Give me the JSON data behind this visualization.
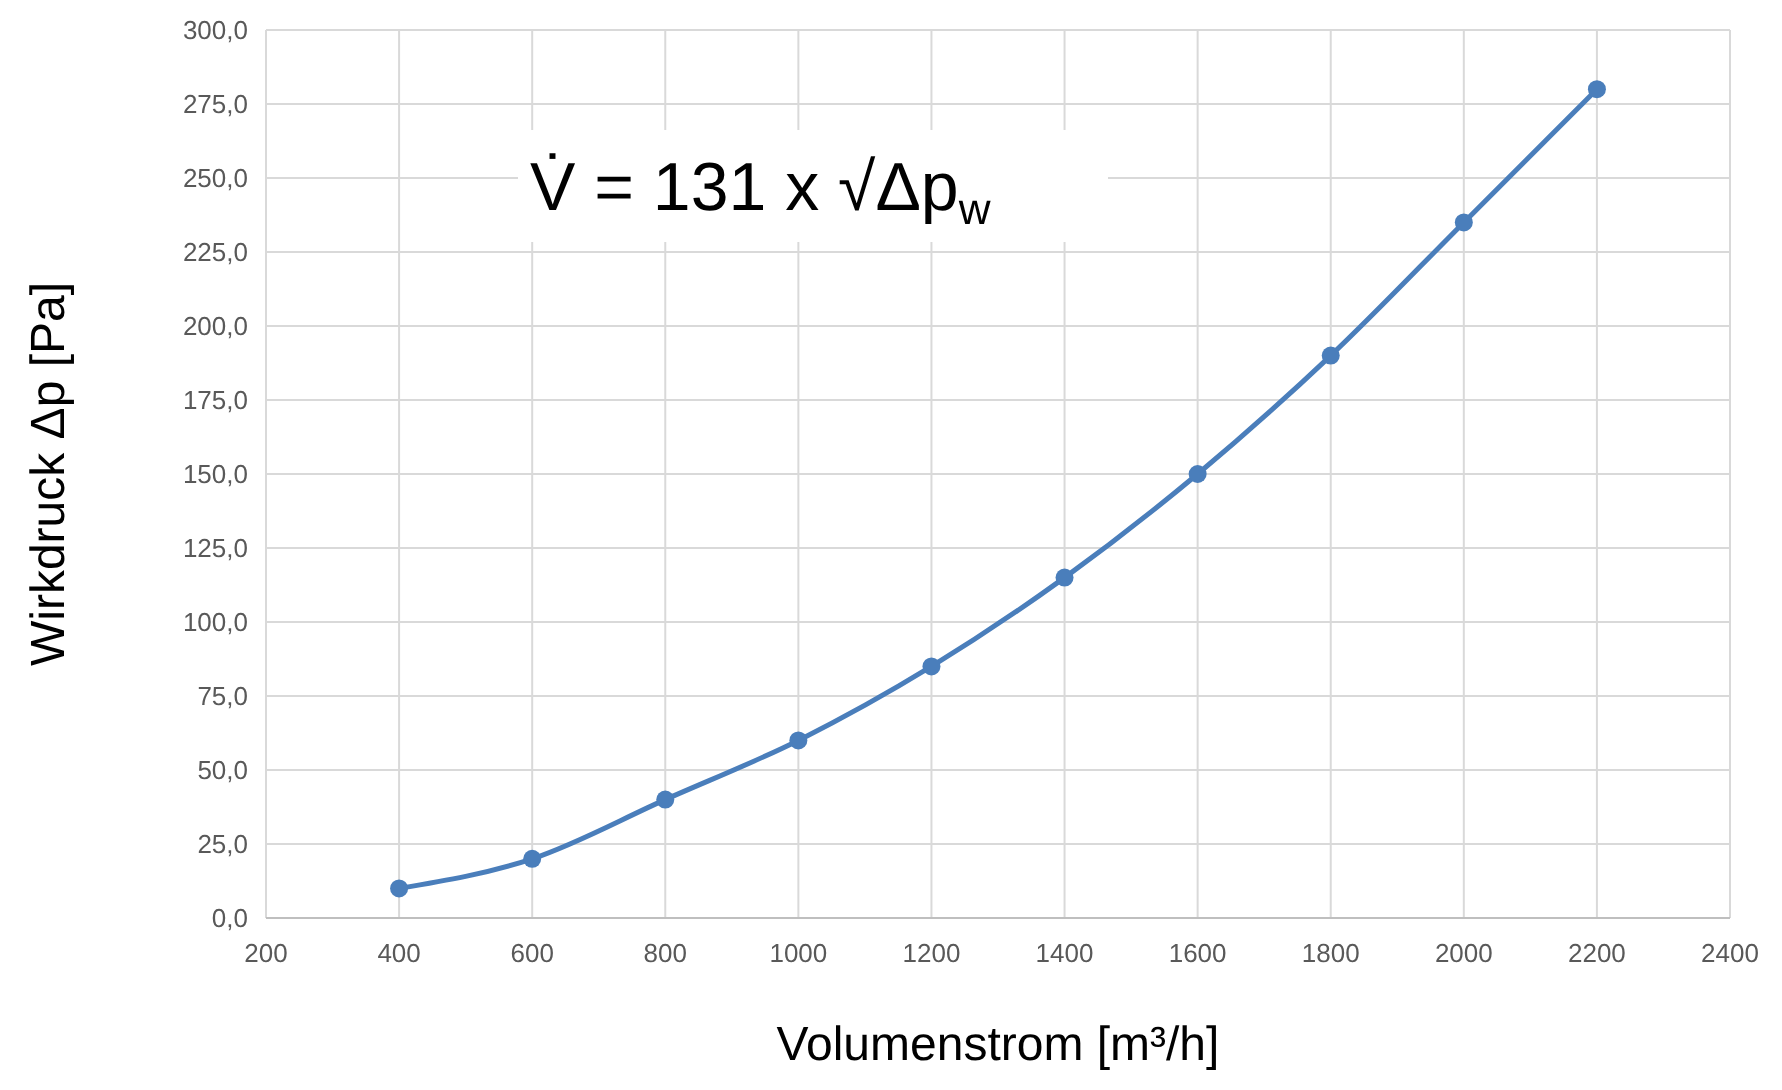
{
  "chart_data": {
    "type": "line",
    "xlabel": "Volumenstrom [m³/h]",
    "ylabel": "Wirkdruck Δp [Pa]",
    "x": [
      400,
      600,
      800,
      1000,
      1200,
      1400,
      1600,
      1800,
      2000,
      2200
    ],
    "series": [
      {
        "color": "#4a7ebb",
        "values": [
          10,
          20,
          40,
          60,
          85,
          115,
          150,
          190,
          235,
          280
        ]
      }
    ],
    "xlim": [
      200,
      2400
    ],
    "xticks": [
      200,
      400,
      600,
      800,
      1000,
      1200,
      1400,
      1600,
      1800,
      2000,
      2200,
      2400
    ],
    "ylim": [
      0,
      300
    ],
    "yticks": [
      {
        "value": 0,
        "label": "0,0"
      },
      {
        "value": 25,
        "label": "25,0"
      },
      {
        "value": 50,
        "label": "50,0"
      },
      {
        "value": 75,
        "label": "75,0"
      },
      {
        "value": 100,
        "label": "100,0"
      },
      {
        "value": 125,
        "label": "125,0"
      },
      {
        "value": 150,
        "label": "150,0"
      },
      {
        "value": 175,
        "label": "175,0"
      },
      {
        "value": 200,
        "label": "200,0"
      },
      {
        "value": 225,
        "label": "225,0"
      },
      {
        "value": 250,
        "label": "250,0"
      },
      {
        "value": 275,
        "label": "275,0"
      },
      {
        "value": 300,
        "label": "300,0"
      }
    ],
    "grid": true,
    "marker": "circle",
    "line_style": "solid",
    "annotations": [
      "V̇ = 131 x √Δp$_{w}$"
    ]
  }
}
